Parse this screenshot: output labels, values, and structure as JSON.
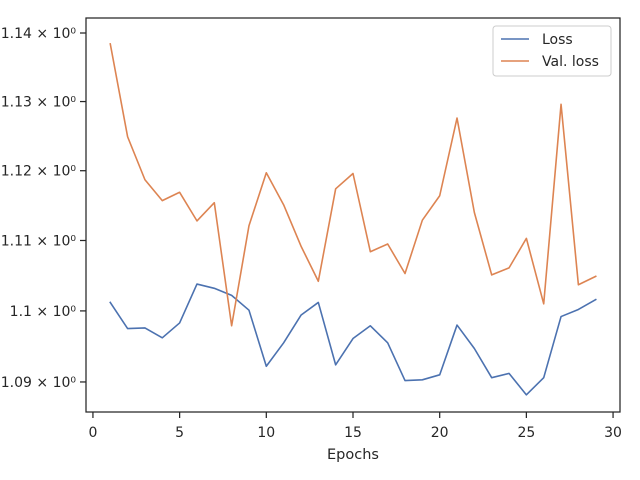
{
  "chart_data": {
    "type": "line",
    "xlabel": "Epochs",
    "ylabel": "",
    "xlim": [
      -0.4,
      30.4
    ],
    "ylim": [
      1.0858,
      1.1422
    ],
    "y_scale": "log",
    "grid": false,
    "legend_position": "top-right",
    "x_ticks": [
      {
        "value": 0,
        "label": "0"
      },
      {
        "value": 5,
        "label": "5"
      },
      {
        "value": 10,
        "label": "10"
      },
      {
        "value": 15,
        "label": "15"
      },
      {
        "value": 20,
        "label": "20"
      },
      {
        "value": 25,
        "label": "25"
      },
      {
        "value": 30,
        "label": "30"
      }
    ],
    "y_ticks": [
      {
        "value": 1.09,
        "label": "1.09 × 10⁰"
      },
      {
        "value": 1.1,
        "label": "1.1 × 10⁰"
      },
      {
        "value": 1.11,
        "label": "1.11 × 10⁰"
      },
      {
        "value": 1.12,
        "label": "1.12 × 10⁰"
      },
      {
        "value": 1.13,
        "label": "1.13 × 10⁰"
      },
      {
        "value": 1.14,
        "label": "1.14 × 10⁰"
      }
    ],
    "x": [
      1,
      2,
      3,
      4,
      5,
      6,
      7,
      8,
      9,
      10,
      11,
      12,
      13,
      14,
      15,
      16,
      17,
      18,
      19,
      20,
      21,
      22,
      23,
      24,
      25,
      26,
      27,
      28,
      29
    ],
    "series": [
      {
        "name": "Loss",
        "color": "#4c72b0",
        "values": [
          1.1012,
          1.0975,
          1.0976,
          1.0962,
          1.0983,
          1.1038,
          1.1032,
          1.1022,
          1.1001,
          1.0922,
          1.0955,
          1.0994,
          1.1012,
          1.0924,
          1.0961,
          1.0979,
          1.0955,
          1.0902,
          1.0903,
          1.091,
          1.098,
          1.0947,
          1.0906,
          1.0912,
          1.0882,
          1.0906,
          1.0992,
          1.1002,
          1.1016
        ]
      },
      {
        "name": "Val. loss",
        "color": "#dd8452",
        "values": [
          1.1384,
          1.1249,
          1.1187,
          1.1157,
          1.1169,
          1.1128,
          1.1154,
          1.0979,
          1.1121,
          1.1197,
          1.1151,
          1.1092,
          1.1042,
          1.1174,
          1.1196,
          1.1084,
          1.1095,
          1.1053,
          1.1129,
          1.1164,
          1.1276,
          1.114,
          1.1051,
          1.1061,
          1.1103,
          1.101,
          1.1296,
          1.1037,
          1.1049
        ]
      }
    ]
  }
}
